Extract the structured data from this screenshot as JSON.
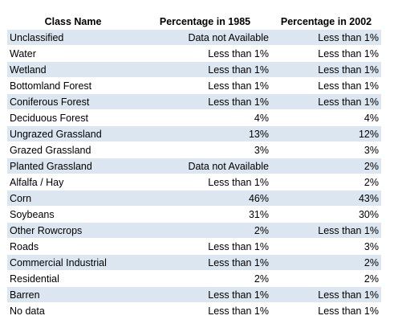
{
  "table": {
    "headers": [
      "Class Name",
      "Percentage in 1985",
      "Percentage in 2002"
    ],
    "rows": [
      [
        "Unclassified",
        "Data not Available",
        "Less than 1%"
      ],
      [
        "Water",
        "Less than 1%",
        "Less than 1%"
      ],
      [
        "Wetland",
        "Less than 1%",
        "Less than 1%"
      ],
      [
        "Bottomland Forest",
        "Less than 1%",
        "Less than 1%"
      ],
      [
        "Coniferous Forest",
        "Less than 1%",
        "Less than 1%"
      ],
      [
        "Deciduous Forest",
        "4%",
        "4%"
      ],
      [
        "Ungrazed Grassland",
        "13%",
        "12%"
      ],
      [
        "Grazed Grassland",
        "3%",
        "3%"
      ],
      [
        "Planted Grassland",
        "Data not Available",
        "2%"
      ],
      [
        "Alfalfa / Hay",
        "Less than 1%",
        "2%"
      ],
      [
        "Corn",
        "46%",
        "43%"
      ],
      [
        "Soybeans",
        "31%",
        "30%"
      ],
      [
        "Other Rowcrops",
        "2%",
        "Less than 1%"
      ],
      [
        "Roads",
        "Less than 1%",
        "3%"
      ],
      [
        "Commercial Industrial",
        "Less than 1%",
        "2%"
      ],
      [
        "Residential",
        "2%",
        "2%"
      ],
      [
        "Barren",
        "Less than 1%",
        "Less than 1%"
      ],
      [
        "No data",
        "Less than 1%",
        "Less than 1%"
      ]
    ]
  },
  "colors": {
    "band": "#dce6f1",
    "plain": "#ffffff",
    "text": "#000000"
  }
}
